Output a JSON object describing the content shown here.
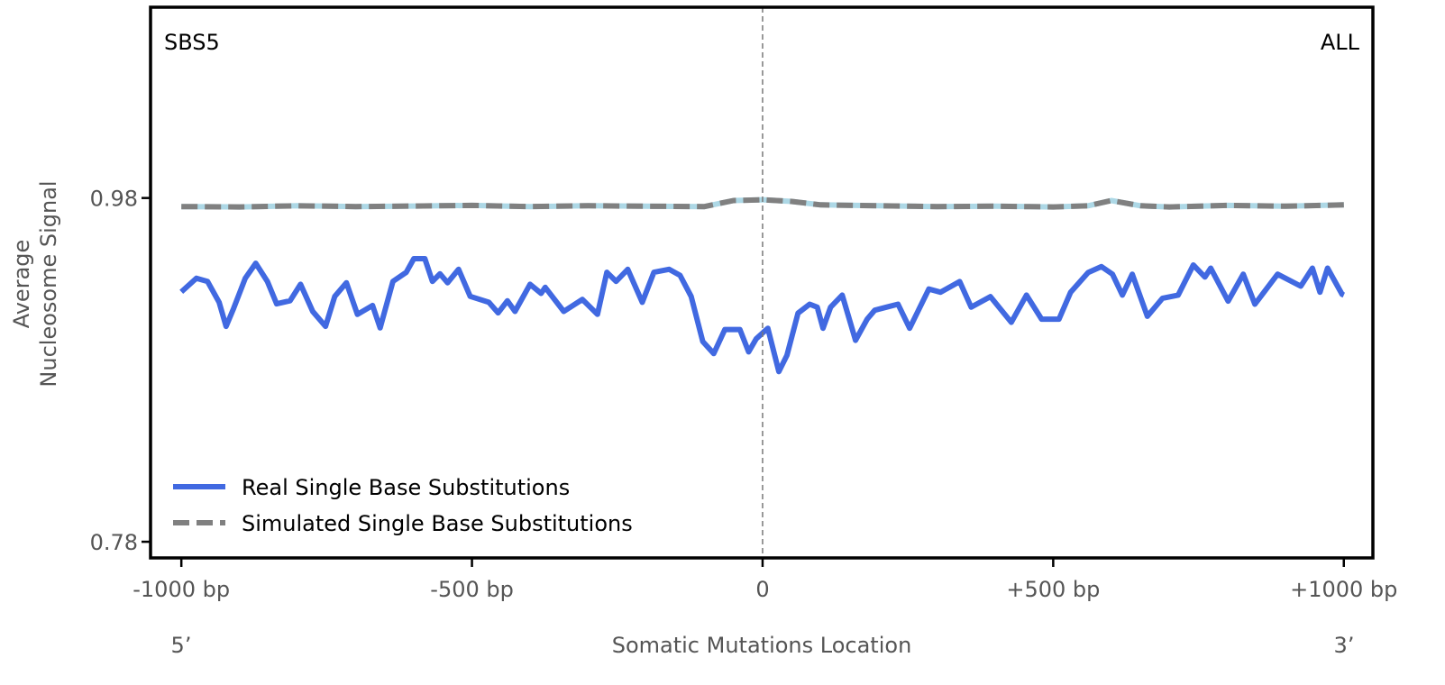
{
  "chart_data": {
    "type": "line",
    "title_left": "SBS5",
    "title_right": "ALL",
    "xlabel": "Somatic Mutations Location",
    "ylabel_lines": [
      "Average",
      "Nucleosome Signal"
    ],
    "x_end_labels": {
      "left": "5’",
      "right": "3’"
    },
    "xlim": [
      -1053,
      1050
    ],
    "ylim": [
      0.7706,
      1.091
    ],
    "xticks": [
      {
        "value": -1000,
        "label": "-1000 bp"
      },
      {
        "value": -500,
        "label": "-500 bp"
      },
      {
        "value": 0,
        "label": "0"
      },
      {
        "value": 500,
        "label": "+500 bp"
      },
      {
        "value": 1000,
        "label": "+1000 bp"
      }
    ],
    "yticks": [
      {
        "value": 0.98,
        "label": "0.98"
      },
      {
        "value": 0.78,
        "label": "0.78"
      }
    ],
    "vline": 0,
    "legend_position": "bottom-left",
    "series": [
      {
        "name": "Real Single Base Substitutions",
        "color": "#4169e1",
        "style": "solid",
        "x": [
          -1000,
          -974,
          -955,
          -935,
          -923,
          -910,
          -890,
          -872,
          -852,
          -836,
          -813,
          -795,
          -774,
          -752,
          -736,
          -716,
          -697,
          -671,
          -658,
          -636,
          -613,
          -600,
          -581,
          -568,
          -555,
          -542,
          -523,
          -503,
          -471,
          -455,
          -439,
          -426,
          -400,
          -381,
          -374,
          -342,
          -310,
          -284,
          -268,
          -252,
          -232,
          -207,
          -187,
          -161,
          -142,
          -123,
          -103,
          -84,
          -65,
          -39,
          -24,
          -11,
          9,
          28,
          42,
          61,
          81,
          94,
          104,
          117,
          137,
          160,
          180,
          193,
          213,
          233,
          253,
          286,
          306,
          339,
          359,
          392,
          428,
          454,
          480,
          510,
          530,
          560,
          583,
          602,
          619,
          636,
          662,
          688,
          715,
          741,
          761,
          771,
          801,
          827,
          847,
          886,
          926,
          946,
          959,
          972,
          997,
          1000
        ],
        "y": [
          0.9254,
          0.9333,
          0.9315,
          0.9193,
          0.9053,
          0.9158,
          0.9333,
          0.942,
          0.9315,
          0.9184,
          0.9202,
          0.9298,
          0.914,
          0.9053,
          0.9228,
          0.9307,
          0.9123,
          0.9175,
          0.9044,
          0.9315,
          0.9368,
          0.9447,
          0.9447,
          0.9315,
          0.9359,
          0.9307,
          0.9385,
          0.9228,
          0.9193,
          0.9132,
          0.9202,
          0.914,
          0.9298,
          0.9245,
          0.928,
          0.914,
          0.921,
          0.9123,
          0.9368,
          0.9315,
          0.9385,
          0.9193,
          0.9368,
          0.9385,
          0.935,
          0.9228,
          0.8965,
          0.8895,
          0.9035,
          0.9035,
          0.8905,
          0.8981,
          0.9042,
          0.879,
          0.8885,
          0.913,
          0.9182,
          0.9165,
          0.9042,
          0.9165,
          0.9235,
          0.8972,
          0.9095,
          0.9147,
          0.9165,
          0.9182,
          0.9042,
          0.927,
          0.9252,
          0.9314,
          0.9165,
          0.9226,
          0.9077,
          0.9235,
          0.9095,
          0.9095,
          0.9252,
          0.9366,
          0.9401,
          0.9357,
          0.9235,
          0.9357,
          0.9112,
          0.9217,
          0.9235,
          0.941,
          0.934,
          0.9392,
          0.92,
          0.9357,
          0.9182,
          0.9357,
          0.9287,
          0.9392,
          0.9252,
          0.9392,
          0.924,
          0.9235
        ]
      },
      {
        "name": "Simulated Single Base Substitutions",
        "color": "#808080",
        "underlay_color": "#add8e6",
        "style": "dashed",
        "x": [
          -1000,
          -900,
          -800,
          -700,
          -600,
          -500,
          -400,
          -300,
          -200,
          -100,
          -50,
          0,
          50,
          100,
          200,
          300,
          400,
          500,
          560,
          600,
          650,
          700,
          800,
          900,
          1000
        ],
        "y": [
          0.975,
          0.9748,
          0.9755,
          0.975,
          0.9753,
          0.9757,
          0.975,
          0.9755,
          0.9752,
          0.975,
          0.9785,
          0.979,
          0.978,
          0.976,
          0.9755,
          0.975,
          0.9752,
          0.9748,
          0.9755,
          0.9785,
          0.9755,
          0.9748,
          0.9757,
          0.9752,
          0.976
        ]
      }
    ]
  }
}
